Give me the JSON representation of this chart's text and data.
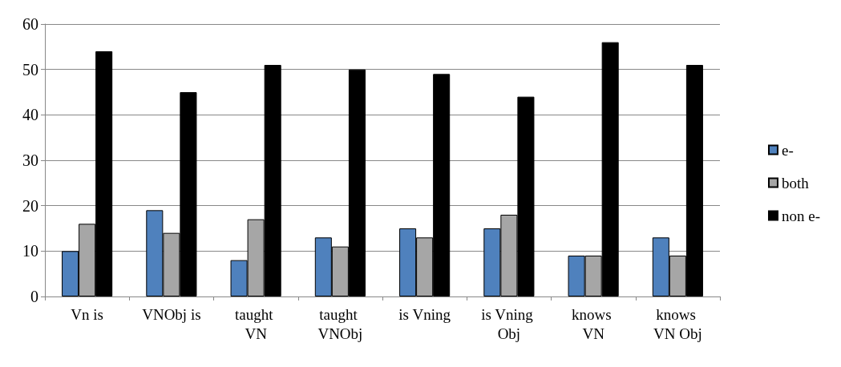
{
  "chart_data": {
    "type": "bar",
    "categories": [
      "Vn is",
      "VNObj is",
      "taught VN",
      "taught VNObj",
      "is Vning",
      "is Vning Obj",
      "knows VN",
      "knows VN Obj"
    ],
    "series": [
      {
        "name": "e-",
        "color": "#4f81bd",
        "values": [
          10,
          19,
          8,
          13,
          15,
          15,
          9,
          13
        ]
      },
      {
        "name": "both",
        "color": "#a6a6a6",
        "values": [
          16,
          14,
          17,
          11,
          13,
          18,
          9,
          9
        ]
      },
      {
        "name": "non e-",
        "color": "#000000",
        "values": [
          54,
          45,
          51,
          50,
          49,
          44,
          56,
          51
        ]
      }
    ],
    "ylim": [
      0,
      60
    ],
    "yticks": [
      0,
      10,
      20,
      30,
      40,
      50,
      60
    ],
    "grid": "y",
    "legend": "right"
  }
}
